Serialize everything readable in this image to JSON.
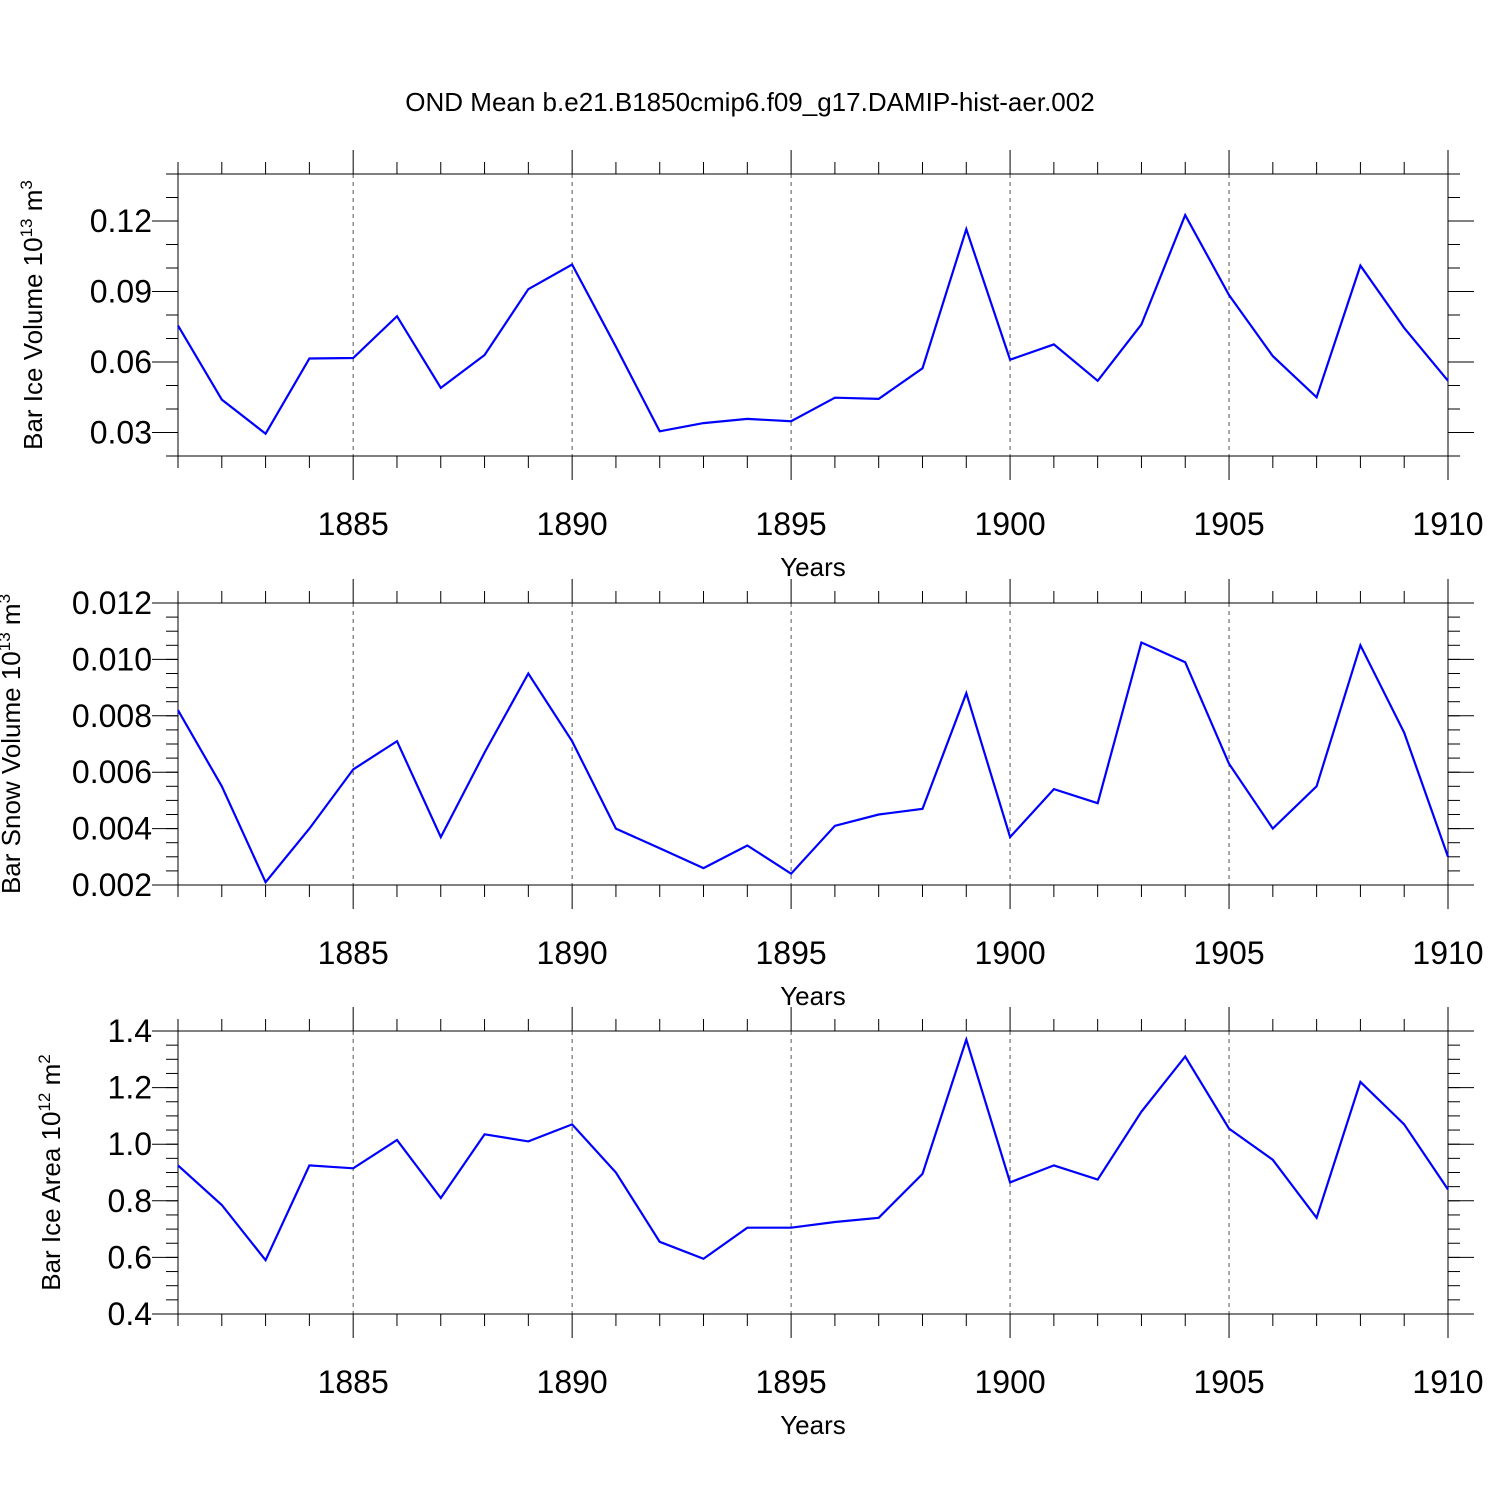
{
  "title": "OND Mean b.e21.B1850cmip6.f09_g17.DAMIP-hist-aer.002",
  "chart_data": [
    {
      "type": "line",
      "xlabel": "Years",
      "ylabel_main": "Bar Ice Volume 10",
      "ylabel_exp": "13",
      "ylabel_unit": "m",
      "ylabel_unit_exp": "3",
      "xlim": [
        1881,
        1910
      ],
      "ylim": [
        0.02,
        0.14
      ],
      "x_ticks": [
        1885,
        1890,
        1895,
        1900,
        1905,
        1910
      ],
      "y_ticks": [
        0.03,
        0.06,
        0.09,
        0.12
      ],
      "y_tick_labels": [
        "0.03",
        "0.06",
        "0.09",
        "0.12"
      ],
      "y_minor_step": 0.01,
      "series": [
        {
          "name": "Bar Ice Volume",
          "color": "#0000ff",
          "x": [
            1881,
            1882,
            1883,
            1884,
            1885,
            1886,
            1887,
            1888,
            1889,
            1890,
            1891,
            1892,
            1893,
            1894,
            1895,
            1896,
            1897,
            1898,
            1899,
            1900,
            1901,
            1902,
            1903,
            1904,
            1905,
            1906,
            1907,
            1908,
            1909,
            1910
          ],
          "values": [
            0.0755,
            0.044,
            0.0295,
            0.0615,
            0.0617,
            0.0795,
            0.049,
            0.063,
            0.091,
            0.1015,
            0.0665,
            0.0305,
            0.034,
            0.0358,
            0.0348,
            0.0448,
            0.0443,
            0.0573,
            0.1165,
            0.061,
            0.0675,
            0.052,
            0.076,
            0.1225,
            0.0885,
            0.0625,
            0.045,
            0.101,
            0.0745,
            0.052
          ]
        }
      ]
    },
    {
      "type": "line",
      "xlabel": "Years",
      "ylabel_main": "Bar Snow Volume 10",
      "ylabel_exp": "13",
      "ylabel_unit": "m",
      "ylabel_unit_exp": "3",
      "xlim": [
        1881,
        1910
      ],
      "ylim": [
        0.002,
        0.012
      ],
      "x_ticks": [
        1885,
        1890,
        1895,
        1900,
        1905,
        1910
      ],
      "y_ticks": [
        0.002,
        0.004,
        0.006,
        0.008,
        0.01,
        0.012
      ],
      "y_tick_labels": [
        "0.002",
        "0.004",
        "0.006",
        "0.008",
        "0.010",
        "0.012"
      ],
      "y_minor_step": 0.0005,
      "series": [
        {
          "name": "Bar Snow Volume",
          "color": "#0000ff",
          "x": [
            1881,
            1882,
            1883,
            1884,
            1885,
            1886,
            1887,
            1888,
            1889,
            1890,
            1891,
            1892,
            1893,
            1894,
            1895,
            1896,
            1897,
            1898,
            1899,
            1900,
            1901,
            1902,
            1903,
            1904,
            1905,
            1906,
            1907,
            1908,
            1909,
            1910
          ],
          "values": [
            0.0082,
            0.0055,
            0.0021,
            0.004,
            0.0061,
            0.0071,
            0.0037,
            0.0067,
            0.0095,
            0.0071,
            0.004,
            0.0033,
            0.0026,
            0.0034,
            0.0024,
            0.0041,
            0.0045,
            0.0047,
            0.0088,
            0.0037,
            0.0054,
            0.0049,
            0.0106,
            0.0099,
            0.0063,
            0.004,
            0.0055,
            0.0105,
            0.0074,
            0.003
          ]
        }
      ]
    },
    {
      "type": "line",
      "xlabel": "Years",
      "ylabel_main": "Bar Ice Area 10",
      "ylabel_exp": "12",
      "ylabel_unit": "m",
      "ylabel_unit_exp": "2",
      "xlim": [
        1881,
        1910
      ],
      "ylim": [
        0.4,
        1.4
      ],
      "x_ticks": [
        1885,
        1890,
        1895,
        1900,
        1905,
        1910
      ],
      "y_ticks": [
        0.4,
        0.6,
        0.8,
        1.0,
        1.2,
        1.4
      ],
      "y_tick_labels": [
        "0.4",
        "0.6",
        "0.8",
        "1.0",
        "1.2",
        "1.4"
      ],
      "y_minor_step": 0.05,
      "series": [
        {
          "name": "Bar Ice Area",
          "color": "#0000ff",
          "x": [
            1881,
            1882,
            1883,
            1884,
            1885,
            1886,
            1887,
            1888,
            1889,
            1890,
            1891,
            1892,
            1893,
            1894,
            1895,
            1896,
            1897,
            1898,
            1899,
            1900,
            1901,
            1902,
            1903,
            1904,
            1905,
            1906,
            1907,
            1908,
            1909,
            1910
          ],
          "values": [
            0.925,
            0.785,
            0.59,
            0.925,
            0.915,
            1.015,
            0.81,
            1.035,
            1.01,
            1.07,
            0.9,
            0.655,
            0.595,
            0.705,
            0.705,
            0.725,
            0.74,
            0.895,
            1.37,
            0.865,
            0.925,
            0.875,
            1.115,
            1.31,
            1.055,
            0.945,
            0.74,
            1.22,
            1.07,
            0.84
          ]
        }
      ]
    }
  ]
}
